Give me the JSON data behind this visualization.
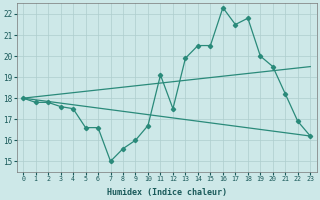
{
  "xlabel": "Humidex (Indice chaleur)",
  "x_values": [
    0,
    1,
    2,
    3,
    4,
    5,
    6,
    7,
    8,
    9,
    10,
    11,
    12,
    13,
    14,
    15,
    16,
    17,
    18,
    19,
    20,
    21,
    22,
    23
  ],
  "main_line": [
    18.0,
    17.8,
    17.8,
    17.6,
    17.5,
    16.6,
    16.6,
    15.0,
    15.6,
    16.0,
    16.7,
    19.1,
    17.5,
    19.9,
    20.5,
    20.5,
    22.3,
    21.5,
    21.8,
    20.0,
    19.5,
    18.2,
    16.9,
    16.2
  ],
  "trend_line1_start": 18.0,
  "trend_line1_end": 19.5,
  "trend_line2_start": 18.0,
  "trend_line2_end": 16.2,
  "line_color": "#2a8a7a",
  "background_color": "#cde8e8",
  "grid_color": "#aecece",
  "ylim": [
    14.5,
    22.5
  ],
  "yticks": [
    15,
    16,
    17,
    18,
    19,
    20,
    21,
    22
  ],
  "xlim": [
    -0.5,
    23.5
  ],
  "figsize": [
    3.2,
    2.0
  ],
  "dpi": 100
}
